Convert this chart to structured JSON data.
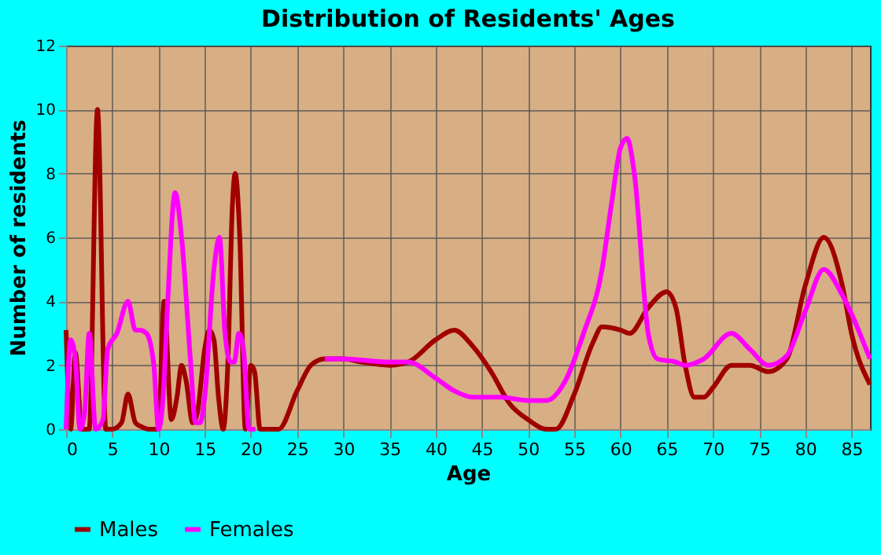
{
  "chart_data": {
    "type": "line",
    "title": "Distribution of Residents' Ages",
    "xlabel": "Age",
    "ylabel": "Number of residents",
    "xlim": [
      0,
      87
    ],
    "xticks": [
      0,
      5,
      10,
      15,
      20,
      25,
      30,
      35,
      40,
      45,
      50,
      55,
      60,
      65,
      70,
      75,
      80,
      85
    ],
    "ylim": [
      0,
      12
    ],
    "yticks": [
      0,
      2,
      4,
      6,
      8,
      10,
      12
    ],
    "grid": true,
    "legend": "bottom",
    "line_style": "solid",
    "marker": "none",
    "series": [
      {
        "name": "Males",
        "color": "#a00000",
        "x": [
          0,
          0.5,
          1,
          1.7,
          2.5,
          3.4,
          4.3,
          5,
          6,
          6.7,
          7.5,
          8,
          9,
          10,
          10.6,
          11.4,
          12,
          12.5,
          13,
          13.7,
          14.2,
          15,
          15.5,
          16,
          16.5,
          17,
          17.5,
          18,
          18.3,
          18.8,
          19.4,
          20,
          20.4,
          21,
          22,
          23,
          25,
          26.5,
          28,
          30,
          32,
          35,
          37,
          40,
          42,
          44,
          46,
          48,
          50,
          52,
          53,
          55,
          57,
          58,
          60,
          61,
          63,
          65,
          66,
          67,
          68,
          69,
          70,
          72,
          74,
          76,
          78,
          80,
          82,
          84,
          85,
          87
        ],
        "values": [
          3.1,
          0,
          2.4,
          0,
          0,
          10,
          0,
          0,
          0.2,
          1.1,
          0.2,
          0.1,
          0,
          0,
          4,
          0.3,
          1,
          2,
          1.5,
          0.2,
          0.5,
          2.5,
          3.1,
          2.8,
          1,
          0,
          2,
          7,
          8,
          6,
          0,
          2,
          1.8,
          0,
          0,
          0,
          1.2,
          2,
          2.2,
          2.2,
          2.1,
          2,
          2.1,
          2.8,
          3.1,
          2.6,
          1.8,
          0.8,
          0.3,
          0,
          0,
          1.1,
          2.7,
          3.2,
          3.1,
          3,
          3.8,
          4.3,
          3.8,
          2,
          1,
          1,
          1.3,
          2,
          2,
          1.8,
          2.2,
          4.5,
          6,
          4.5,
          3,
          1.4
        ]
      },
      {
        "name": "Females",
        "color": "#ff00ff",
        "x": [
          0,
          0.5,
          1,
          1.5,
          2,
          2.5,
          3.2,
          4,
          4.5,
          5.5,
          6.7,
          7.5,
          8,
          8.7,
          9.5,
          10,
          10.5,
          11,
          11.8,
          12.5,
          13.5,
          14,
          14.5,
          15,
          16,
          16.6,
          17.2,
          17.8,
          18.2,
          18.7,
          19.2,
          19.8,
          20.5,
          21,
          22,
          23,
          25,
          26.5,
          28,
          30,
          35,
          37,
          40,
          42,
          44,
          47,
          50,
          52,
          54,
          56,
          58,
          59,
          60,
          60.7,
          61.5,
          63,
          64,
          66,
          67,
          69,
          72,
          74,
          76,
          78,
          80,
          82,
          84,
          87
        ],
        "values": [
          0,
          2.8,
          2.2,
          0,
          0.5,
          3,
          0,
          0.3,
          2.5,
          3,
          4,
          3.1,
          3.1,
          3,
          2,
          0,
          1,
          4,
          7.4,
          6,
          2,
          0.2,
          0.2,
          1,
          5,
          6,
          3,
          2.1,
          2.1,
          3,
          2.5,
          0,
          0,
          null,
          null,
          null,
          null,
          null,
          2.2,
          2.2,
          2.1,
          2.1,
          1.6,
          1.2,
          1,
          1,
          0.9,
          0.9,
          1.5,
          3,
          5,
          7,
          8.8,
          9.1,
          8,
          3,
          2.2,
          2.1,
          2,
          2.2,
          3,
          2.5,
          2,
          2.3,
          3.7,
          5,
          4.2,
          2.2
        ]
      }
    ]
  }
}
